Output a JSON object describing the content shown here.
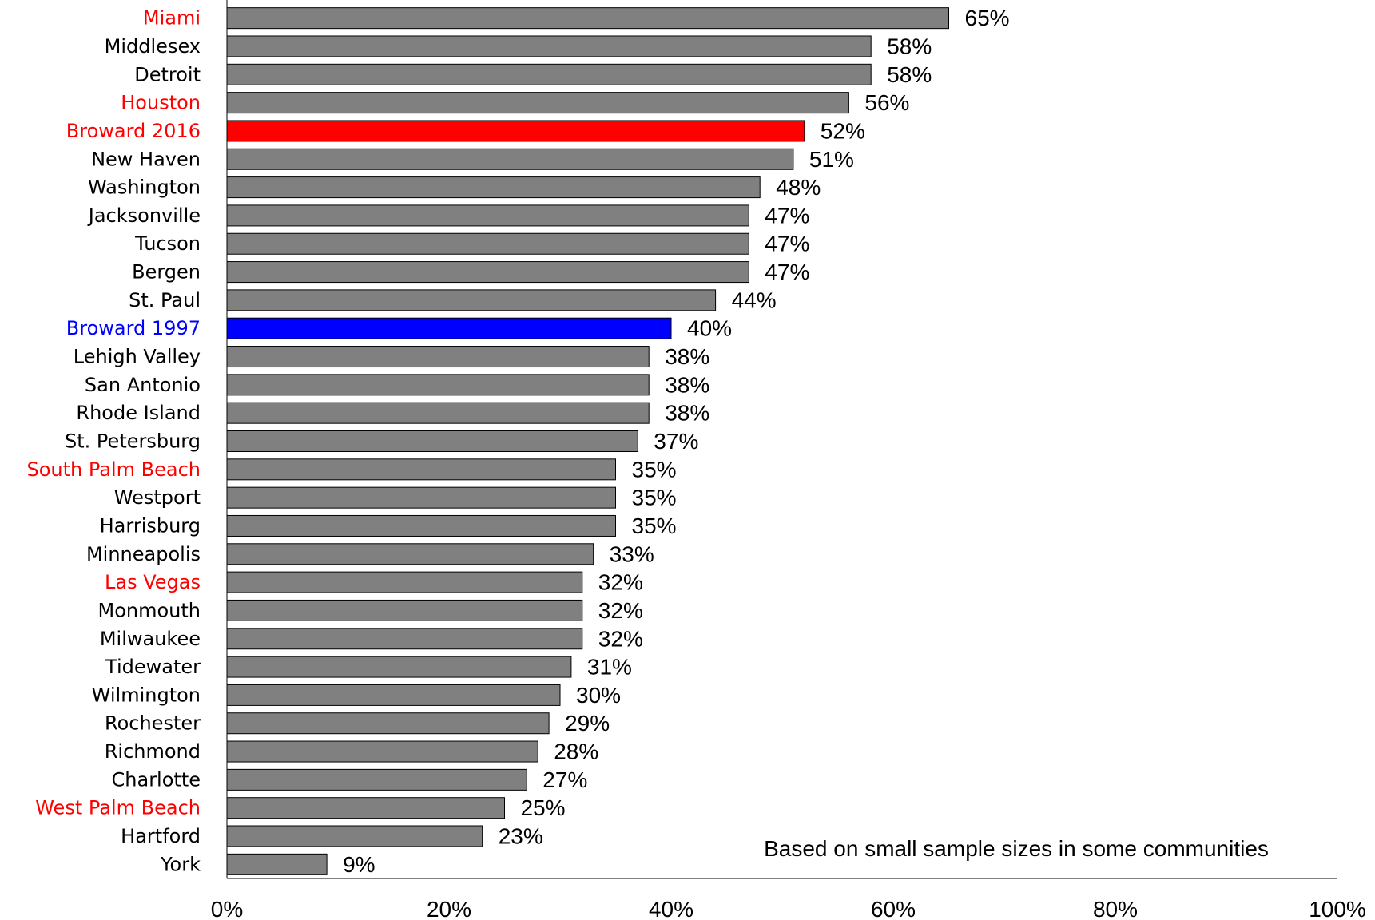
{
  "chart_data": {
    "type": "bar",
    "orientation": "horizontal",
    "categories": [
      "Miami",
      "Middlesex",
      "Detroit",
      "Houston",
      "Broward 2016",
      "New Haven",
      "Washington",
      "Jacksonville",
      "Tucson",
      "Bergen",
      "St. Paul",
      "Broward 1997",
      "Lehigh Valley",
      "San Antonio",
      "Rhode Island",
      "St. Petersburg",
      "South Palm Beach",
      "Westport",
      "Harrisburg",
      "Minneapolis",
      "Las Vegas",
      "Monmouth",
      "Milwaukee",
      "Tidewater",
      "Wilmington",
      "Rochester",
      "Richmond",
      "Charlotte",
      "West Palm Beach",
      "Hartford",
      "York"
    ],
    "values": [
      65,
      58,
      58,
      56,
      52,
      51,
      48,
      47,
      47,
      47,
      44,
      40,
      38,
      38,
      38,
      37,
      35,
      35,
      35,
      33,
      32,
      32,
      32,
      31,
      30,
      29,
      28,
      27,
      25,
      23,
      9
    ],
    "value_labels": [
      "65%",
      "58%",
      "58%",
      "56%",
      "52%",
      "51%",
      "48%",
      "47%",
      "47%",
      "47%",
      "44%",
      "40%",
      "38%",
      "38%",
      "38%",
      "37%",
      "35%",
      "35%",
      "35%",
      "33%",
      "32%",
      "32%",
      "32%",
      "31%",
      "30%",
      "29%",
      "28%",
      "27%",
      "25%",
      "23%",
      "9%"
    ],
    "bar_colors": [
      "#808080",
      "#808080",
      "#808080",
      "#808080",
      "#ff0000",
      "#808080",
      "#808080",
      "#808080",
      "#808080",
      "#808080",
      "#808080",
      "#0000ff",
      "#808080",
      "#808080",
      "#808080",
      "#808080",
      "#808080",
      "#808080",
      "#808080",
      "#808080",
      "#808080",
      "#808080",
      "#808080",
      "#808080",
      "#808080",
      "#808080",
      "#808080",
      "#808080",
      "#808080",
      "#808080",
      "#808080"
    ],
    "label_colors": [
      "#ff0000",
      "#000000",
      "#000000",
      "#ff0000",
      "#ff0000",
      "#000000",
      "#000000",
      "#000000",
      "#000000",
      "#000000",
      "#000000",
      "#0000ff",
      "#000000",
      "#000000",
      "#000000",
      "#000000",
      "#ff0000",
      "#000000",
      "#000000",
      "#000000",
      "#ff0000",
      "#000000",
      "#000000",
      "#000000",
      "#000000",
      "#000000",
      "#000000",
      "#000000",
      "#ff0000",
      "#000000",
      "#000000"
    ],
    "xlim": [
      0,
      100
    ],
    "xticks": [
      0,
      20,
      40,
      60,
      80,
      100
    ],
    "xtick_labels": [
      "0%",
      "20%",
      "40%",
      "60%",
      "80%",
      "100%"
    ],
    "title": "",
    "xlabel": "",
    "ylabel": "",
    "grid": false,
    "annotation": "Based on small sample sizes in some communities"
  }
}
